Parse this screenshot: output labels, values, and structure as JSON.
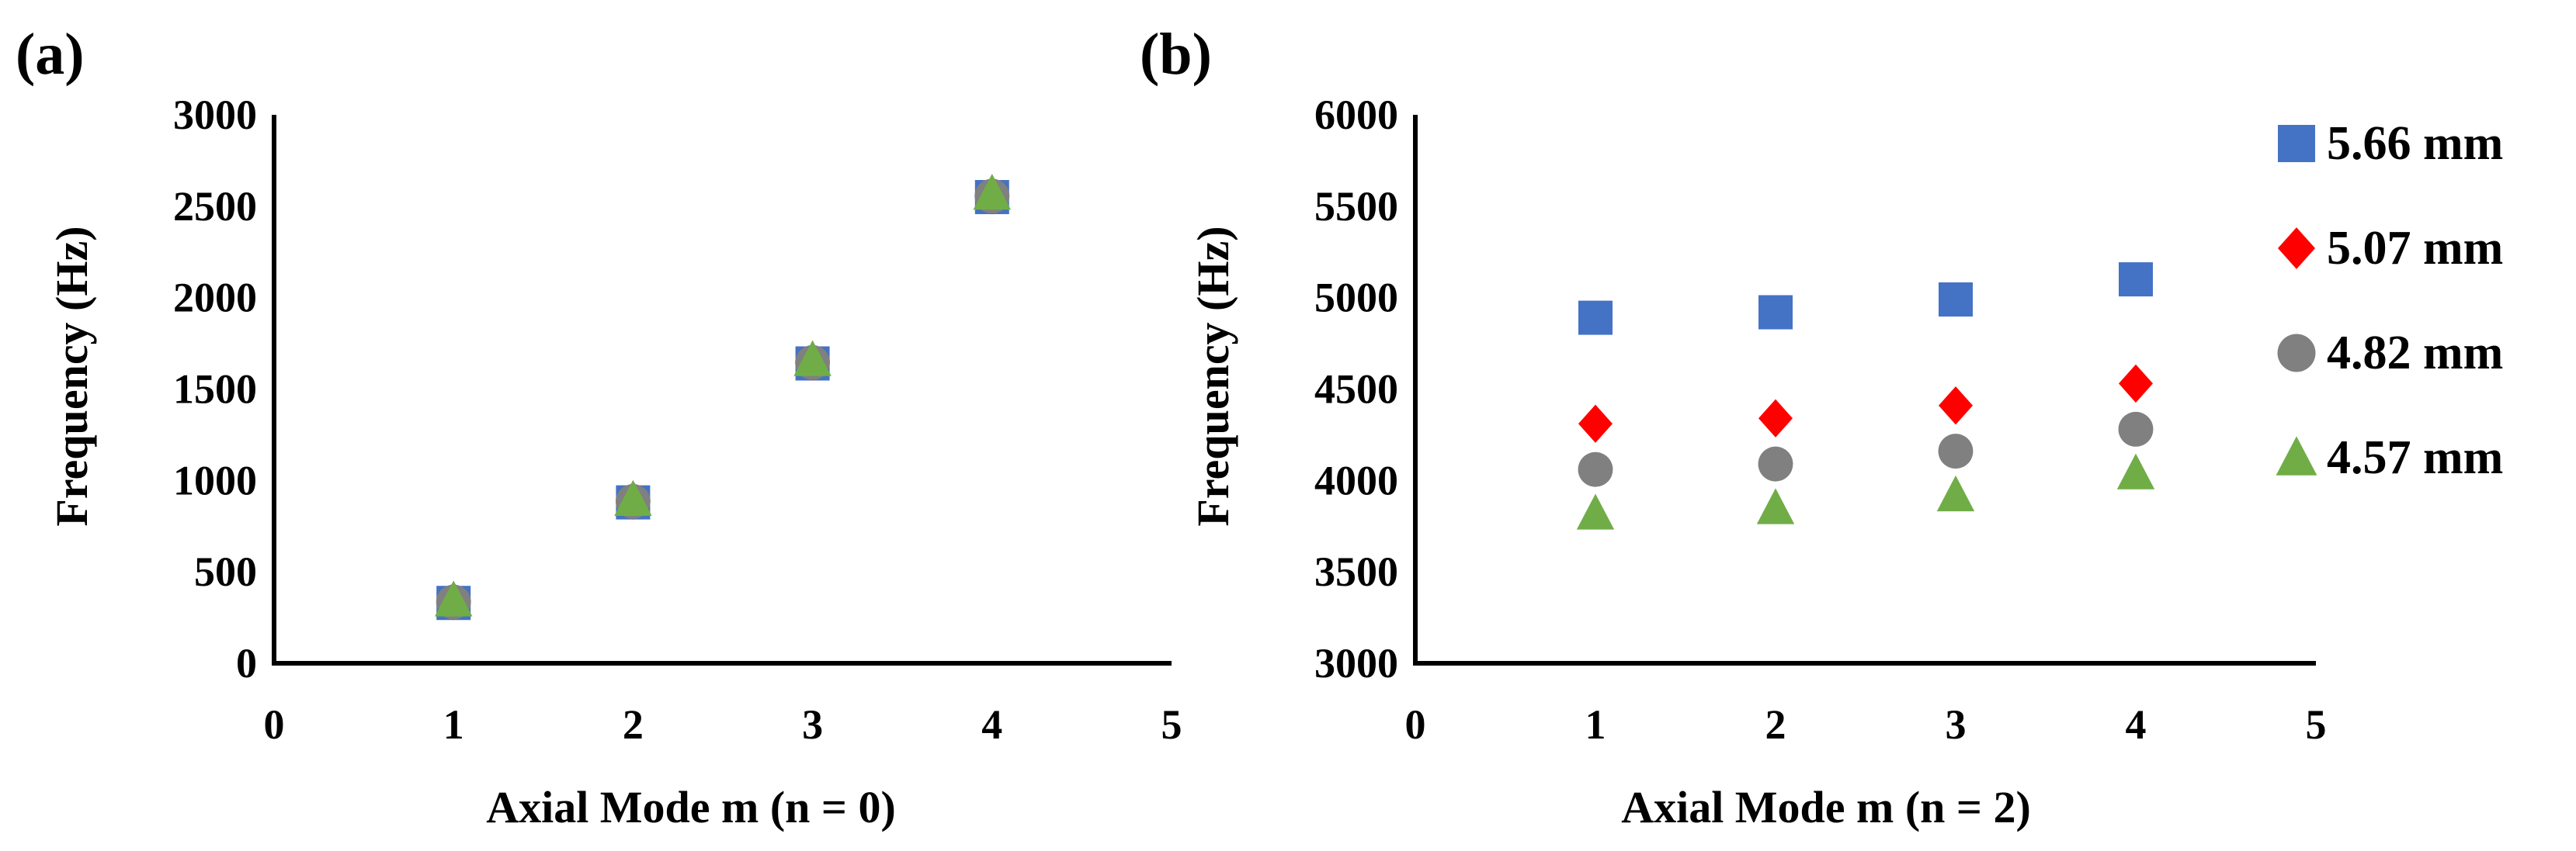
{
  "colors": {
    "s566": "#4472C4",
    "s507": "#FF0000",
    "s482": "#808080",
    "s457": "#70AD47",
    "axis": "#000000"
  },
  "legend": {
    "position": "right",
    "entries": [
      {
        "label": "5.66 mm",
        "marker": "square",
        "color": "#4472C4"
      },
      {
        "label": "5.07 mm",
        "marker": "diamond",
        "color": "#FF0000"
      },
      {
        "label": "4.82 mm",
        "marker": "circle",
        "color": "#808080"
      },
      {
        "label": "4.57 mm",
        "marker": "triangle",
        "color": "#70AD47"
      }
    ]
  },
  "chart_data": [
    {
      "type": "scatter",
      "panel_label": "(a)",
      "xlabel": "Axial Mode m  (n = 0)",
      "ylabel": "Frequency (Hz)",
      "xlim": [
        0,
        5
      ],
      "ylim": [
        0,
        3000
      ],
      "xticks": [
        0,
        1,
        2,
        3,
        4,
        5
      ],
      "yticks": [
        0,
        500,
        1000,
        1500,
        2000,
        2500,
        3000
      ],
      "grid": false,
      "series": [
        {
          "name": "5.66 mm",
          "marker": "square",
          "x": [
            1,
            2,
            3,
            4
          ],
          "y": [
            330,
            880,
            1640,
            2550
          ]
        },
        {
          "name": "5.07 mm",
          "marker": "diamond",
          "x": [
            1,
            2,
            3,
            4
          ],
          "y": [
            340,
            890,
            1650,
            2560
          ]
        },
        {
          "name": "4.82 mm",
          "marker": "circle",
          "x": [
            1,
            2,
            3,
            4
          ],
          "y": [
            335,
            885,
            1645,
            2555
          ]
        },
        {
          "name": "4.57 mm",
          "marker": "triangle",
          "x": [
            1,
            2,
            3,
            4
          ],
          "y": [
            345,
            895,
            1660,
            2570
          ]
        }
      ]
    },
    {
      "type": "scatter",
      "panel_label": "(b)",
      "xlabel": "Axial Mode m  (n = 2)",
      "ylabel": "Frequency (Hz)",
      "xlim": [
        0,
        5
      ],
      "ylim": [
        3000,
        6000
      ],
      "xticks": [
        0,
        1,
        2,
        3,
        4,
        5
      ],
      "yticks": [
        3000,
        3500,
        4000,
        4500,
        5000,
        5500,
        6000
      ],
      "grid": false,
      "series": [
        {
          "name": "5.66 mm",
          "marker": "square",
          "x": [
            1,
            2,
            3,
            4
          ],
          "y": [
            4890,
            4920,
            4990,
            5100
          ]
        },
        {
          "name": "5.07 mm",
          "marker": "diamond",
          "x": [
            1,
            2,
            3,
            4
          ],
          "y": [
            4310,
            4340,
            4410,
            4530
          ]
        },
        {
          "name": "4.82 mm",
          "marker": "circle",
          "x": [
            1,
            2,
            3,
            4
          ],
          "y": [
            4060,
            4090,
            4160,
            4280
          ]
        },
        {
          "name": "4.57 mm",
          "marker": "triangle",
          "x": [
            1,
            2,
            3,
            4
          ],
          "y": [
            3820,
            3850,
            3920,
            4040
          ]
        }
      ]
    }
  ]
}
